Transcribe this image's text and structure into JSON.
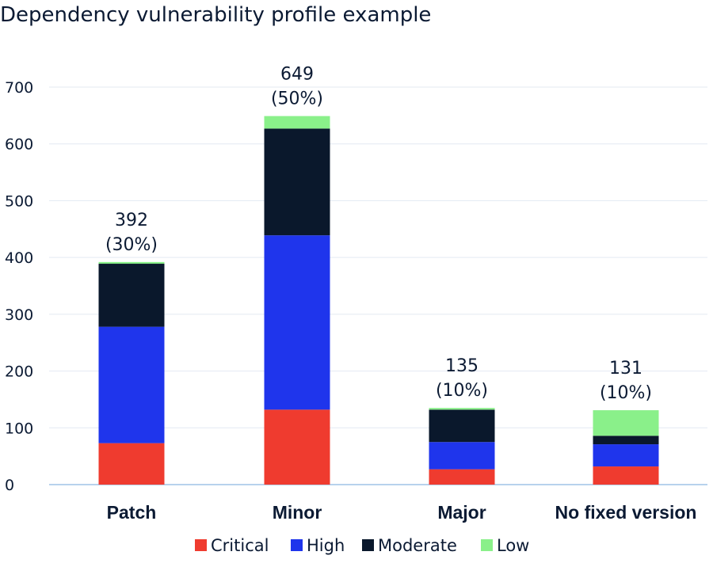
{
  "chart_data": {
    "type": "bar",
    "stacked": true,
    "title": "Dependency vulnerability profile example",
    "xlabel": "",
    "ylabel": "",
    "ylim": [
      0,
      700
    ],
    "yticks": [
      0,
      100,
      200,
      300,
      400,
      500,
      600,
      700
    ],
    "grid": true,
    "legend_position": "bottom",
    "categories": [
      "Patch",
      "Minor",
      "Major",
      "No fixed version"
    ],
    "series": [
      {
        "name": "Critical",
        "color": "#ef3b2f",
        "values": [
          73,
          132,
          27,
          32
        ]
      },
      {
        "name": "High",
        "color": "#1f35ec",
        "values": [
          205,
          307,
          48,
          39
        ]
      },
      {
        "name": "Moderate",
        "color": "#0a182c",
        "values": [
          111,
          188,
          57,
          15
        ]
      },
      {
        "name": "Low",
        "color": "#8af08a",
        "values": [
          3,
          22,
          3,
          45
        ]
      }
    ],
    "totals": [
      392,
      649,
      135,
      131
    ],
    "total_labels": [
      "392",
      "649",
      "135",
      "131"
    ],
    "share_labels": [
      "(30%)",
      "(50%)",
      "(10%)",
      "(10%)"
    ]
  }
}
